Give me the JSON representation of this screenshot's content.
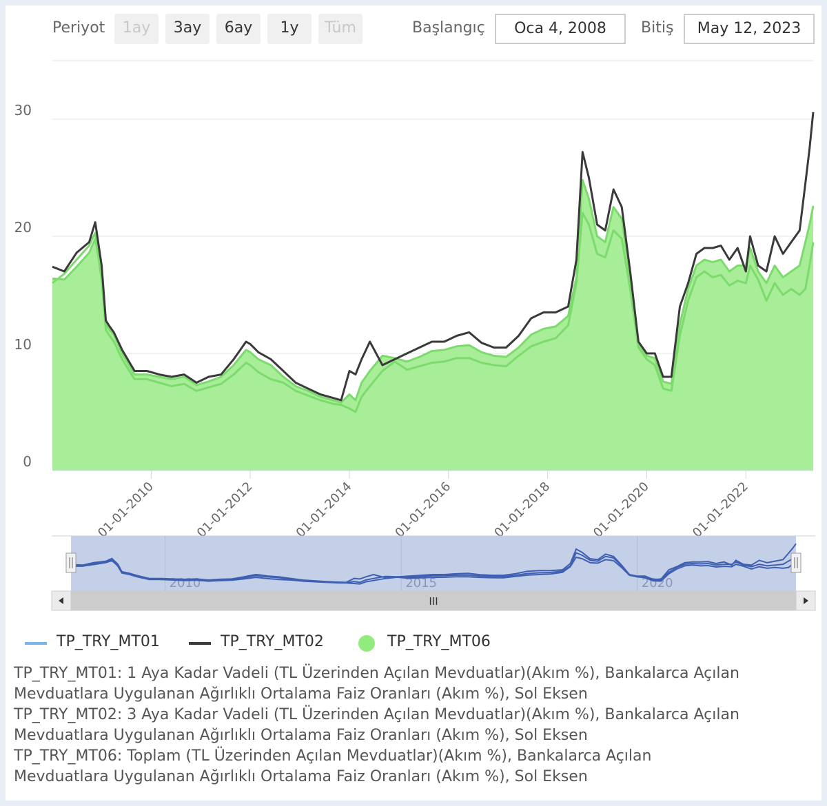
{
  "toolbar": {
    "period_label": "Periyot",
    "period_buttons": [
      {
        "label": "1ay",
        "enabled": false
      },
      {
        "label": "3ay",
        "enabled": true
      },
      {
        "label": "6ay",
        "enabled": true
      },
      {
        "label": "1y",
        "enabled": true
      },
      {
        "label": "Tüm",
        "enabled": false
      }
    ],
    "start_label": "Başlangıç",
    "start_value": "Oca 4, 2008",
    "end_label": "Bitiş",
    "end_value": "May 12, 2023"
  },
  "navigator": {
    "year_labels": [
      "2010",
      "2015",
      "2020"
    ],
    "scroll_grip": "III",
    "left_arrow_icon": "triangle-left",
    "right_arrow_icon": "triangle-right"
  },
  "legend": [
    {
      "name": "TP_TRY_MT01",
      "symbol": "line",
      "color": "#7cb5ec"
    },
    {
      "name": "TP_TRY_MT02",
      "symbol": "line",
      "color": "#3a3a3a"
    },
    {
      "name": "TP_TRY_MT06",
      "symbol": "circle",
      "color": "#90ed7d"
    }
  ],
  "descriptions": [
    "TP_TRY_MT01: 1 Aya Kadar Vadeli (TL Üzerinden Açılan Mevduatlar)(Akım %), Bankalarca Açılan",
    "Mevduatlara Uygulanan Ağırlıklı Ortalama Faiz Oranları (Akım %), Sol Eksen",
    "TP_TRY_MT02: 3 Aya Kadar Vadeli (TL Üzerinden Açılan Mevduatlar)(Akım %), Bankalarca Açılan",
    "Mevduatlara Uygulanan Ağırlıklı Ortalama Faiz Oranları (Akım %), Sol Eksen",
    "TP_TRY_MT06: Toplam (TL Üzerinden Açılan Mevduatlar)(Akım %), Bankalarca Açılan",
    "Mevduatlara Uygulanan Ağırlıklı Ortalama Faiz Oranları (Akım %), Sol Eksen"
  ],
  "colors": {
    "mt01_line": "#7cb5ec",
    "mt02_line": "#3a3a3a",
    "mt06_line": "#7ddb6e",
    "mt06_fill": "#a8ee98",
    "navigator_mask": "#c4cfe8",
    "navigator_line": "#3f5fb0",
    "grid": "#e6e6e6"
  },
  "chart_data": {
    "type": "area",
    "x_type": "date",
    "x_range": [
      "2008-01-04",
      "2023-05-12"
    ],
    "ylim": [
      0,
      35
    ],
    "y_ticks": [
      0,
      10,
      20,
      30
    ],
    "x_tick_labels": [
      "01-01-2010",
      "01-01-2012",
      "01-01-2014",
      "01-01-2016",
      "01-01-2018",
      "01-01-2020",
      "01-01-2022"
    ],
    "x_ticks": [
      "2010-01-01",
      "2012-01-01",
      "2014-01-01",
      "2016-01-01",
      "2018-01-01",
      "2020-01-01",
      "2022-01-01"
    ],
    "grid": true,
    "legend_position": "bottom-left",
    "x": [
      "2008-01-04",
      "2008-04-01",
      "2008-07-01",
      "2008-10-01",
      "2008-11-15",
      "2009-01-01",
      "2009-02-01",
      "2009-03-01",
      "2009-04-01",
      "2009-06-01",
      "2009-09-01",
      "2009-12-01",
      "2010-03-01",
      "2010-06-01",
      "2010-09-01",
      "2010-12-01",
      "2011-03-01",
      "2011-06-01",
      "2011-09-01",
      "2011-12-01",
      "2012-01-01",
      "2012-03-01",
      "2012-06-01",
      "2012-09-01",
      "2012-12-01",
      "2013-03-01",
      "2013-06-01",
      "2013-09-01",
      "2013-11-01",
      "2014-01-01",
      "2014-02-15",
      "2014-04-01",
      "2014-06-01",
      "2014-09-01",
      "2014-12-01",
      "2015-03-01",
      "2015-06-01",
      "2015-09-01",
      "2015-12-01",
      "2016-03-01",
      "2016-06-01",
      "2016-09-01",
      "2016-12-01",
      "2017-03-01",
      "2017-06-01",
      "2017-09-01",
      "2017-12-01",
      "2018-03-01",
      "2018-06-01",
      "2018-08-01",
      "2018-09-15",
      "2018-11-01",
      "2019-01-01",
      "2019-03-01",
      "2019-05-01",
      "2019-07-01",
      "2019-09-01",
      "2019-11-01",
      "2020-01-01",
      "2020-03-01",
      "2020-05-01",
      "2020-07-01",
      "2020-09-01",
      "2020-11-01",
      "2021-01-01",
      "2021-03-01",
      "2021-05-01",
      "2021-07-01",
      "2021-09-01",
      "2021-11-01",
      "2022-01-01",
      "2022-02-01",
      "2022-04-01",
      "2022-06-01",
      "2022-08-01",
      "2022-10-01",
      "2022-12-01",
      "2023-02-01",
      "2023-03-15",
      "2023-04-15",
      "2023-05-12"
    ],
    "series": [
      {
        "name": "TP_TRY_MT01",
        "values": [
          16.0,
          16.8,
          18.0,
          19.2,
          20.3,
          16.2,
          12.0,
          11.5,
          11.0,
          9.5,
          7.8,
          7.8,
          7.5,
          7.2,
          7.4,
          6.8,
          7.1,
          7.4,
          8.2,
          9.2,
          9.0,
          8.4,
          7.8,
          7.5,
          6.8,
          6.4,
          6.0,
          5.7,
          5.6,
          5.3,
          5.0,
          6.3,
          7.2,
          8.5,
          9.3,
          8.6,
          8.9,
          9.2,
          9.3,
          9.6,
          9.6,
          9.2,
          9.0,
          8.9,
          9.8,
          10.6,
          11.0,
          11.3,
          12.4,
          16.0,
          22.0,
          21.0,
          18.5,
          18.2,
          20.5,
          19.8,
          15.5,
          10.5,
          9.5,
          9.0,
          7.0,
          6.8,
          11.5,
          14.5,
          16.5,
          17.0,
          16.5,
          16.7,
          15.8,
          16.2,
          16.0,
          17.5,
          16.3,
          14.5,
          16.0,
          15.0,
          15.5,
          15.0,
          15.5,
          17.5,
          19.5
        ]
      },
      {
        "name": "TP_TRY_MT02",
        "values": [
          17.4,
          17.0,
          18.6,
          19.5,
          21.2,
          17.5,
          12.8,
          12.3,
          11.8,
          10.3,
          8.5,
          8.5,
          8.2,
          8.0,
          8.2,
          7.5,
          8.0,
          8.2,
          9.5,
          11.0,
          10.8,
          10.1,
          9.5,
          8.5,
          7.5,
          7.0,
          6.5,
          6.2,
          6.0,
          8.5,
          8.2,
          9.5,
          11.0,
          9.0,
          9.5,
          10.0,
          10.5,
          11.0,
          11.0,
          11.5,
          11.8,
          10.9,
          10.5,
          10.5,
          11.5,
          13.0,
          13.5,
          13.5,
          14.0,
          18.0,
          27.2,
          25.0,
          21.0,
          20.5,
          24.0,
          22.5,
          17.0,
          11.0,
          10.0,
          10.0,
          8.0,
          8.0,
          14.0,
          16.0,
          18.5,
          19.0,
          19.0,
          19.2,
          18.0,
          19.0,
          17.0,
          20.0,
          17.5,
          17.0,
          20.0,
          18.5,
          19.5,
          20.5,
          24.5,
          27.5,
          30.6
        ]
      },
      {
        "name": "TP_TRY_MT06",
        "values": [
          16.4,
          16.3,
          17.4,
          18.6,
          19.8,
          16.6,
          12.5,
          12.0,
          11.6,
          10.0,
          8.2,
          8.2,
          8.0,
          7.8,
          8.0,
          7.3,
          7.6,
          8.0,
          9.0,
          10.3,
          10.1,
          9.5,
          9.0,
          8.0,
          7.2,
          6.8,
          6.3,
          6.0,
          5.8,
          6.5,
          6.0,
          7.5,
          8.5,
          9.8,
          9.6,
          9.3,
          9.7,
          10.2,
          10.3,
          10.6,
          10.7,
          10.1,
          9.8,
          9.7,
          10.5,
          11.6,
          12.1,
          12.3,
          13.2,
          16.5,
          24.8,
          23.2,
          20.0,
          19.5,
          22.5,
          21.5,
          16.5,
          10.8,
          9.8,
          9.6,
          7.6,
          7.4,
          12.5,
          15.5,
          17.5,
          18.0,
          17.8,
          18.0,
          17.0,
          17.5,
          17.5,
          19.0,
          17.0,
          16.0,
          17.5,
          16.5,
          17.0,
          17.5,
          19.5,
          21.0,
          22.6
        ]
      }
    ]
  }
}
